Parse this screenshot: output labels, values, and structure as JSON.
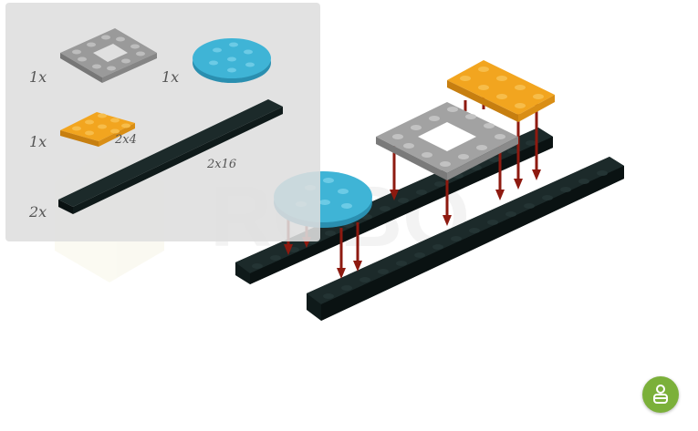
{
  "parts": [
    {
      "qty": "1x",
      "icon": "gray-square-frame-plate"
    },
    {
      "qty": "1x",
      "icon": "blue-round-plate"
    },
    {
      "qty": "1x",
      "icon": "orange-plate",
      "size": "2x4"
    },
    {
      "qty": "2x",
      "icon": "black-long-plate",
      "size": "2x16"
    }
  ],
  "watermark": "ROBO",
  "colors": {
    "gray": "#9a9a9a",
    "blue": "#3fb4d6",
    "orange": "#f2a51f",
    "black": "#1c2a2a",
    "arrow": "#8e1a10",
    "help": "#7bb03a"
  },
  "help_button": {
    "icon": "person-help-icon"
  }
}
